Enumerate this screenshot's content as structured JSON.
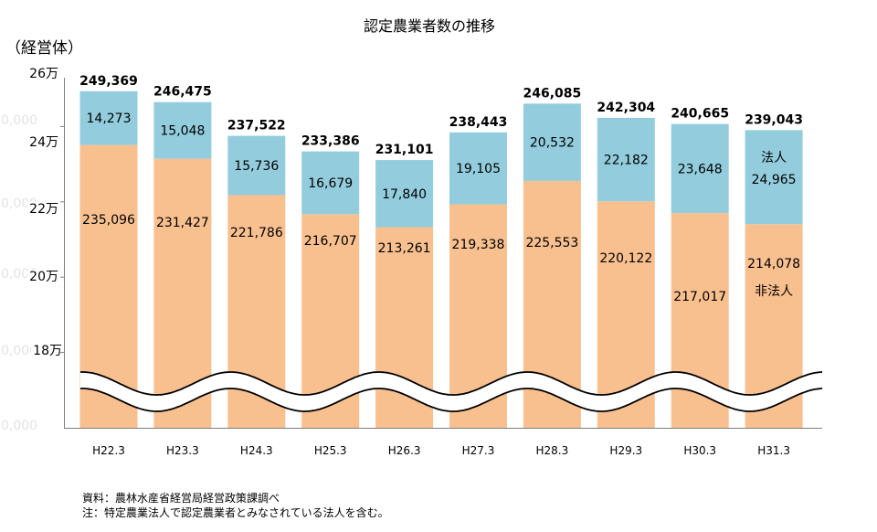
{
  "chart_data": {
    "type": "bar",
    "stacked": true,
    "title": "認定農業者数の推移",
    "ylabel": "（経営体）",
    "xlabel": "",
    "categories": [
      "H22.3",
      "H23.3",
      "H24.3",
      "H25.3",
      "H26.3",
      "H27.3",
      "H28.3",
      "H29.3",
      "H30.3",
      "H31.3"
    ],
    "series": [
      {
        "name": "非法人",
        "color": "#F9C08F",
        "values": [
          235096,
          231427,
          221786,
          216707,
          213261,
          219338,
          225553,
          220122,
          217017,
          214078
        ]
      },
      {
        "name": "法人",
        "color": "#93CDDD",
        "values": [
          14273,
          15048,
          15736,
          16679,
          17840,
          19105,
          20532,
          22182,
          23648,
          24965
        ]
      }
    ],
    "totals": [
      249369,
      246475,
      237522,
      233386,
      231101,
      238443,
      246085,
      242304,
      240665,
      239043
    ],
    "ylim": [
      160000,
      260000
    ],
    "yticks": [
      {
        "value": 260000,
        "label": "26万"
      },
      {
        "value": 240000,
        "label": "24万"
      },
      {
        "value": 220000,
        "label": "22万"
      },
      {
        "value": 200000,
        "label": "20万"
      },
      {
        "value": 180000,
        "label": "18万"
      }
    ],
    "faded_tick_labels": [
      "0,000",
      "0,000",
      "0,000",
      "0,000",
      "0,000"
    ],
    "axis_break": true,
    "grid": false
  },
  "notes": {
    "source": "資料：農林水産省経営局経営政策課調べ",
    "note": "注：特定農業法人で認定農業者とみなされている法人を含む。"
  },
  "colors": {
    "axis": "#7F7F7F",
    "break_line": "#000000",
    "faded_text": "#E3E3E3",
    "background": "#FFFFFF"
  }
}
